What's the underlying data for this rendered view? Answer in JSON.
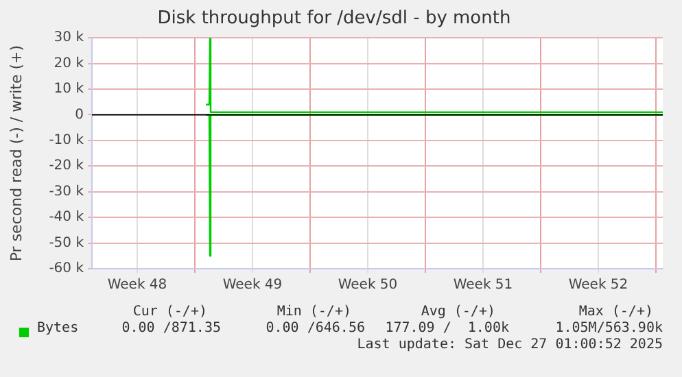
{
  "chart_data": {
    "type": "line",
    "title": "Disk throughput for /dev/sdl - by month",
    "ylabel": "Pr second read (-) / write (+)",
    "series": [
      {
        "name": "Bytes",
        "color": "#00cc00",
        "x": [
          "2025-11-28T04:00",
          "2025-11-28T09:00",
          "2025-11-28T10:00",
          "2025-11-28T11:00",
          "2025-12-08",
          "2025-12-15",
          "2025-12-22",
          "2025-12-25T22:00"
        ],
        "values": [
          4000,
          4000,
          30000,
          1000,
          1000,
          1000,
          1000,
          1000
        ]
      },
      {
        "color": "#00cc00",
        "x": [
          "2025-11-28T04:00",
          "2025-11-28T09:00",
          "2025-11-28T10:00",
          "2025-11-28T11:00",
          "2025-12-08",
          "2025-12-15",
          "2025-12-22",
          "2025-12-25T22:00"
        ],
        "values": [
          0,
          0,
          -55000,
          0,
          0,
          0,
          0,
          0
        ]
      }
    ],
    "xlim": [
      "2025-11-21T06:00",
      "2025-12-25T22:00"
    ],
    "xticks": [
      {
        "value": "2025-11-24",
        "label": "Week 48"
      },
      {
        "value": "2025-11-27T12:00",
        "label": null
      },
      {
        "value": "2025-12-01",
        "label": "Week 49"
      },
      {
        "value": "2025-12-04T12:00",
        "label": null
      },
      {
        "value": "2025-12-08",
        "label": "Week 50"
      },
      {
        "value": "2025-12-11T12:00",
        "label": null
      },
      {
        "value": "2025-12-15",
        "label": "Week 51"
      },
      {
        "value": "2025-12-18T12:00",
        "label": null
      },
      {
        "value": "2025-12-22",
        "label": "Week 52"
      },
      {
        "value": "2025-12-25T12:00",
        "label": null
      }
    ],
    "ylim": [
      -60000,
      30000
    ],
    "yticks": [
      {
        "value": -60000,
        "label": "-60 k"
      },
      {
        "value": -50000,
        "label": "-50 k"
      },
      {
        "value": -40000,
        "label": "-40 k"
      },
      {
        "value": -30000,
        "label": "-30 k"
      },
      {
        "value": -20000,
        "label": "-20 k"
      },
      {
        "value": -10000,
        "label": "-10 k"
      },
      0,
      {
        "value": 10000,
        "label": "10 k"
      },
      {
        "value": 20000,
        "label": "20 k"
      },
      {
        "value": 30000,
        "label": "30 k"
      }
    ],
    "ref_lines": [
      {
        "axis": "y",
        "value": 0,
        "color": "#000000"
      }
    ],
    "grid": true,
    "legend": "bottom left",
    "marker": "none",
    "line_style": "solid",
    "annotations": [
      "Cur (-/+)",
      "Min (-/+)",
      "Avg (-/+)",
      "Max (-/+)",
      "0.00 /871.35",
      "0.00 /646.56",
      "177.09 /  1.00k",
      "1.05M/563.90k",
      "Last update: Sat Dec 27 01:00:52 2025"
    ]
  }
}
